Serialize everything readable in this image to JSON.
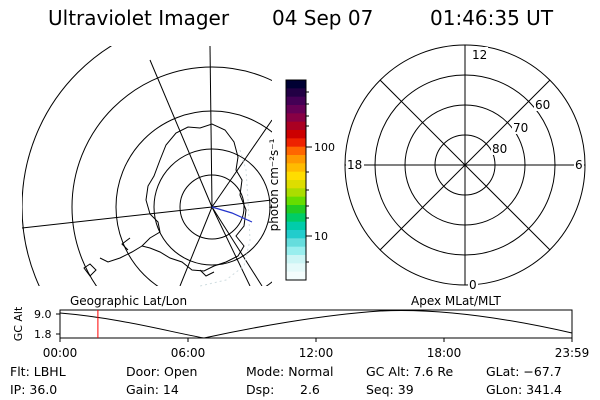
{
  "header": {
    "instrument": "Ultraviolet Imager",
    "date": "04 Sep 07",
    "time": "01:46:35 UT"
  },
  "colorbar": {
    "unit_label": "photon cm⁻²s⁻¹",
    "ticks": [
      "100",
      "10"
    ],
    "colors": [
      "#000033",
      "#220044",
      "#440055",
      "#660055",
      "#880044",
      "#aa0022",
      "#cc0000",
      "#ee2200",
      "#ff6600",
      "#ff9900",
      "#ffbb00",
      "#ffdd00",
      "#dddd00",
      "#aadd00",
      "#66dd00",
      "#22cc22",
      "#00cc66",
      "#00ccaa",
      "#22cccc",
      "#66dddd",
      "#99eeee",
      "#ccf5f5",
      "#e5fafa",
      "#f4fdfd"
    ]
  },
  "geo_panel": {
    "label": "Geographic Lat/Lon"
  },
  "polar_panel": {
    "label": "Apex MLat/MLT",
    "mlt_labels": [
      "12",
      "18",
      "6",
      "0"
    ],
    "mlat_labels": [
      "60",
      "70",
      "80"
    ]
  },
  "altitude_strip": {
    "axis_label": "GC Alt",
    "y_ticks": [
      "9.0",
      "1.8"
    ],
    "time_ticks": [
      "00:00",
      "06:00",
      "12:00",
      "18:00",
      "23:59"
    ],
    "marker_time": "01:46:35",
    "marker_color": "#ff0000"
  },
  "footer": {
    "flt": "Flt: LBHL",
    "ip": "IP: 36.0",
    "door": "Door: Open",
    "gain": "Gain: 14",
    "mode": "Mode: Normal",
    "dsp_label": "Dsp:",
    "dsp_value": "2.6",
    "gc_alt": "GC Alt: 7.6 Re",
    "seq": "Seq: 39",
    "glat": "GLat: −67.7",
    "glon": "GLon: 341.4"
  }
}
